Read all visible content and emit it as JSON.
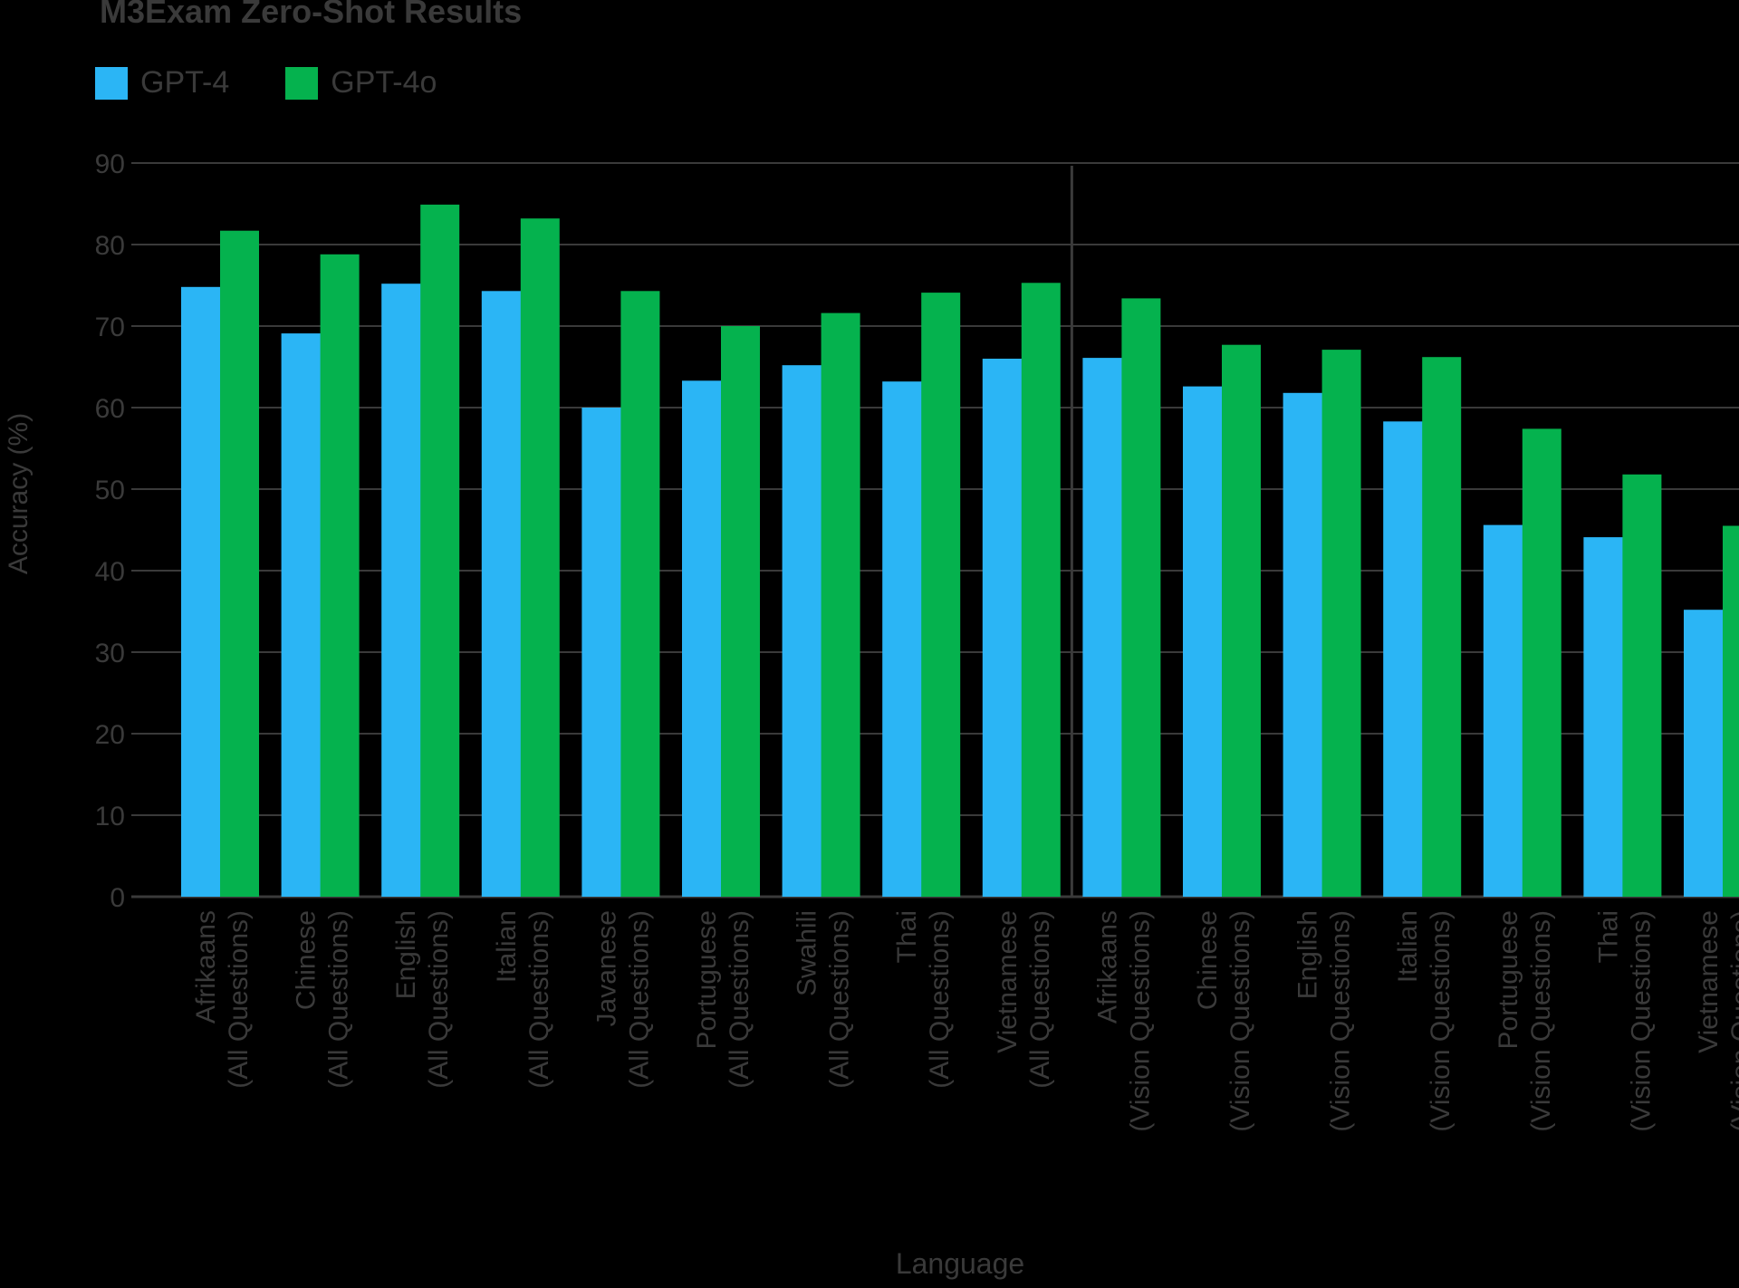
{
  "chart_data": {
    "type": "bar",
    "title": "M3Exam Zero-Shot Results",
    "xlabel": "Language",
    "ylabel": "Accuracy (%)",
    "ylim": [
      0,
      90
    ],
    "yticks": [
      0,
      10,
      20,
      30,
      40,
      50,
      60,
      70,
      80,
      90
    ],
    "grid": true,
    "legend_position": "top-left",
    "categories": [
      [
        "Afrikaans",
        "(All Questions)"
      ],
      [
        "Chinese",
        "(All Questions)"
      ],
      [
        "English",
        "(All Questions)"
      ],
      [
        "Italian",
        "(All Questions)"
      ],
      [
        "Javanese",
        "(All Questions)"
      ],
      [
        "Portuguese",
        "(All Questions)"
      ],
      [
        "Swahili",
        "(All Questions)"
      ],
      [
        "Thai",
        "(All Questions)"
      ],
      [
        "Vietnamese",
        "(All Questions)"
      ],
      [
        "Afrikaans",
        "(Vision Questions)"
      ],
      [
        "Chinese",
        "(Vision Questions)"
      ],
      [
        "English",
        "(Vision Questions)"
      ],
      [
        "Italian",
        "(Vision Questions)"
      ],
      [
        "Portuguese",
        "(Vision Questions)"
      ],
      [
        "Thai",
        "(Vision Questions)"
      ],
      [
        "Vietnamese",
        "(Vision Questions)"
      ]
    ],
    "series": [
      {
        "name": "GPT-4",
        "color": "#2bb5f5",
        "values": [
          74.8,
          69.1,
          75.2,
          74.3,
          60.0,
          63.3,
          65.2,
          63.2,
          66.0,
          66.1,
          62.6,
          61.8,
          58.3,
          45.6,
          44.1,
          35.2
        ]
      },
      {
        "name": "GPT-4o",
        "color": "#05b24e",
        "values": [
          81.7,
          78.8,
          84.9,
          83.2,
          74.3,
          70.0,
          71.6,
          74.1,
          75.3,
          73.4,
          67.7,
          67.1,
          66.2,
          57.4,
          51.8,
          45.5
        ]
      }
    ],
    "divider_after_index": 8,
    "colors": {
      "background": "#000000",
      "text": "#3a3a3a",
      "grid": "#3a3a3a"
    }
  }
}
